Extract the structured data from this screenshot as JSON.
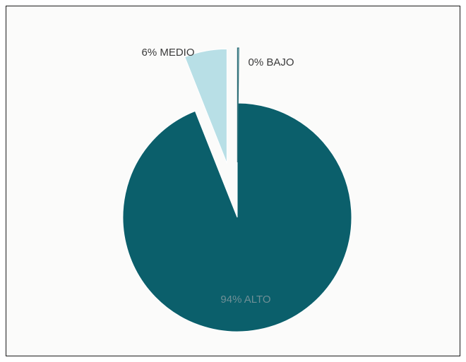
{
  "chart_data": {
    "type": "pie",
    "title": "",
    "slices": [
      {
        "label": "ALTO",
        "value": 94,
        "display": "94% ALTO",
        "color": "#0b5f6b",
        "exploded": false
      },
      {
        "label": "MEDIO",
        "value": 6,
        "display": "6% MEDIO",
        "color": "#b8dfe6",
        "exploded": true
      },
      {
        "label": "BAJO",
        "value": 0,
        "display": "0% BAJO",
        "color": "#b8dfe6",
        "exploded": true
      }
    ],
    "legend": "none",
    "labels": "slice-labels"
  },
  "colors": {
    "background": "#fbfbfa",
    "border": "#1a1a1a",
    "slice_outline": "#ffffff",
    "thin_slice_outline": "#2f6f78"
  }
}
